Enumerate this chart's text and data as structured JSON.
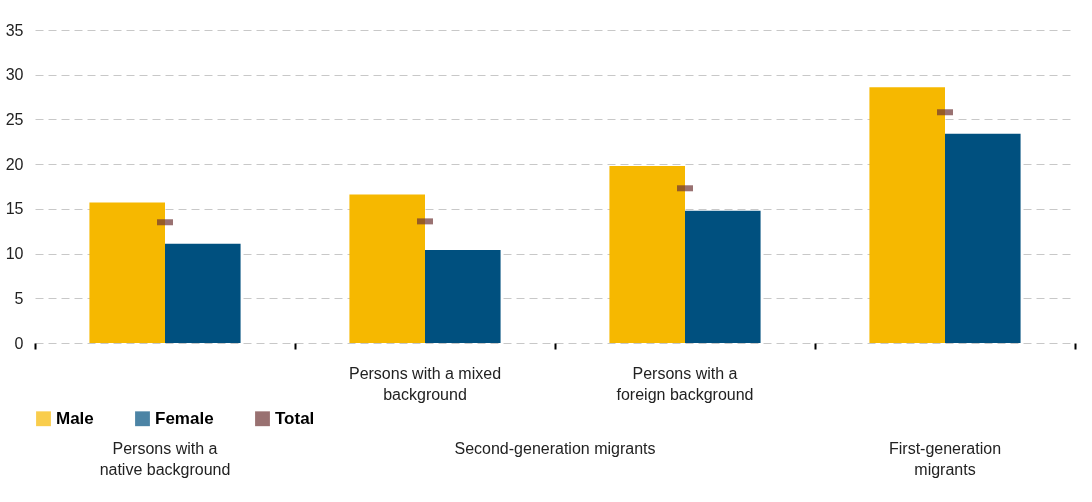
{
  "chart_data": {
    "type": "bar",
    "categories": [
      "Persons with a\nnative background",
      "Persons with a mixed\nbackground",
      "Persons with a\nforeign background",
      "First-generation\nmigrants"
    ],
    "series": [
      {
        "name": "Male",
        "color": "#f6b800",
        "values": [
          15.7,
          16.6,
          19.8,
          28.6
        ]
      },
      {
        "name": "Female",
        "color": "#00507f",
        "values": [
          11.1,
          10.4,
          14.8,
          23.4
        ]
      },
      {
        "name": "Total",
        "type": "scatter",
        "color": "#6e3434",
        "values": [
          13.5,
          13.6,
          17.3,
          25.8
        ]
      }
    ],
    "annotations": [
      "Second-generation migrants"
    ],
    "ylim": [
      0,
      35
    ],
    "yticks": [
      0,
      5,
      10,
      15,
      20,
      25,
      30,
      35
    ],
    "grid": "y",
    "legend": "bottom"
  }
}
